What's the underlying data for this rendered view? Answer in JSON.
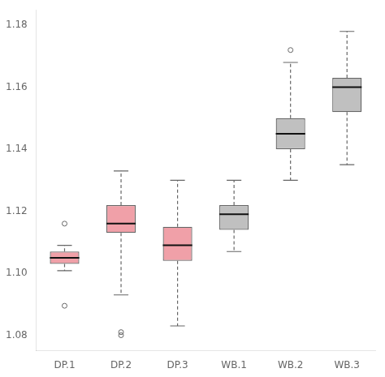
{
  "chart_data": {
    "type": "box",
    "categories": [
      "DP.1",
      "DP.2",
      "DP.3",
      "WB.1",
      "WB.2",
      "WB.3"
    ],
    "colors": [
      "#f0a0a8",
      "#f0a0a8",
      "#f0a0a8",
      "#c0c0c0",
      "#c0c0c0",
      "#c0c0c0"
    ],
    "boxes": [
      {
        "low": 1.1008,
        "q1": 1.103,
        "median": 1.105,
        "q3": 1.107,
        "high": 1.109,
        "fliers": [
          1.0895,
          1.116
        ]
      },
      {
        "low": 1.093,
        "q1": 1.113,
        "median": 1.116,
        "q3": 1.122,
        "high": 1.133,
        "fliers": [
          1.08,
          1.081
        ]
      },
      {
        "low": 1.083,
        "q1": 1.104,
        "median": 1.109,
        "q3": 1.115,
        "high": 1.13,
        "fliers": []
      },
      {
        "low": 1.107,
        "q1": 1.114,
        "median": 1.119,
        "q3": 1.122,
        "high": 1.13,
        "fliers": []
      },
      {
        "low": 1.13,
        "q1": 1.14,
        "median": 1.145,
        "q3": 1.15,
        "high": 1.168,
        "fliers": [
          1.172
        ]
      },
      {
        "low": 1.135,
        "q1": 1.152,
        "median": 1.16,
        "q3": 1.163,
        "high": 1.178,
        "fliers": []
      }
    ],
    "ylim": [
      1.075,
      1.185
    ],
    "yticks": [
      1.08,
      {
        "value": 1.1,
        "label": "1.10"
      },
      1.12,
      1.14,
      1.16,
      1.18
    ],
    "grid": false
  }
}
